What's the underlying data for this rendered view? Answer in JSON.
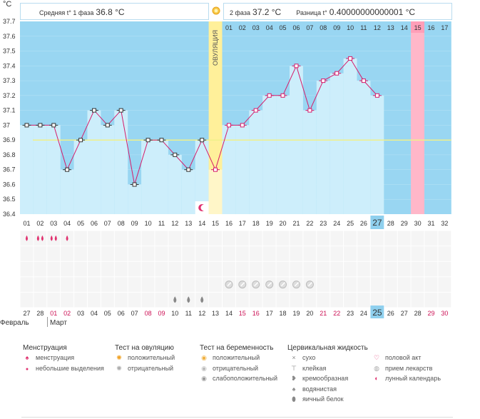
{
  "header": {
    "unit": "°C",
    "phase1_label": "Средняя t° 1 фаза",
    "phase1_value": "36.8 °C",
    "phase2_label": "2 фаза",
    "phase2_value": "37.2 °C",
    "diff_label": "Разница t°",
    "diff_value": "0.40000000000001 °C"
  },
  "ovulation_label": "ОВУЛЯЦИЯ",
  "chart_data": {
    "type": "line",
    "ylim": [
      36.4,
      37.7
    ],
    "y_ticks": [
      "37.7",
      "37.6",
      "37.5",
      "37.4",
      "37.3",
      "37.2",
      "37.1",
      "37",
      "36.9",
      "36.8",
      "36.7",
      "36.6",
      "36.5",
      "36.4"
    ],
    "cycle_days": [
      "01",
      "02",
      "03",
      "04",
      "05",
      "06",
      "07",
      "08",
      "09",
      "10",
      "11",
      "12",
      "13",
      "14",
      "15",
      "16",
      "17",
      "18",
      "19",
      "20",
      "21",
      "22",
      "23",
      "24",
      "25",
      "26",
      "27",
      "28",
      "29",
      "30",
      "31",
      "32"
    ],
    "highlight_day": "27",
    "temperatures": [
      37.0,
      37.0,
      37.0,
      36.7,
      36.9,
      37.1,
      37.0,
      37.1,
      36.6,
      36.9,
      36.9,
      36.8,
      36.7,
      36.9,
      36.7,
      37.0,
      37.0,
      37.1,
      37.2,
      37.2,
      37.4,
      37.1,
      37.3,
      37.35,
      37.45,
      37.3,
      37.2
    ],
    "coverline": 36.9,
    "luteal_days": [
      "01",
      "02",
      "03",
      "04",
      "05",
      "06",
      "07",
      "08",
      "09",
      "10",
      "11",
      "12",
      "13",
      "14",
      "15",
      "16",
      "17"
    ],
    "luteal_highlight": "15",
    "ovulation_day": "15",
    "moon_day": "14",
    "dates": [
      "27",
      "28",
      "01",
      "02",
      "03",
      "04",
      "05",
      "06",
      "07",
      "08",
      "09",
      "10",
      "11",
      "12",
      "13",
      "14",
      "15",
      "16",
      "17",
      "18",
      "19",
      "20",
      "21",
      "22",
      "23",
      "24",
      "25",
      "26",
      "27",
      "28",
      "29",
      "30"
    ],
    "date_colors": [
      "#333",
      "#333",
      "#cc1155",
      "#cc1155",
      "#333",
      "#333",
      "#333",
      "#333",
      "#333",
      "#cc1155",
      "#cc1155",
      "#333",
      "#333",
      "#333",
      "#333",
      "#333",
      "#cc1155",
      "#cc1155",
      "#333",
      "#333",
      "#333",
      "#333",
      "#cc1155",
      "#cc1155",
      "#333",
      "#333",
      "#333",
      "#333",
      "#333",
      "#333",
      "#cc1155",
      "#cc1155"
    ],
    "highlight_date": "25",
    "months": [
      "Февраль",
      "Март"
    ],
    "colors": {
      "high": "#99d6f2",
      "low": "#cdeefb",
      "line": "#d61c6a",
      "ovulation": "#fff09a",
      "day15": "#ffb7c9",
      "coverline": "#f0f08a"
    }
  },
  "legend": {
    "menstruation": {
      "title": "Менструация",
      "items": [
        "менструация",
        "небольшие выделения"
      ]
    },
    "ovulation_test": {
      "title": "Тест на овуляцию",
      "items": [
        "положительный",
        "отрицательный"
      ]
    },
    "pregnancy_test": {
      "title": "Тест на беременность",
      "items": [
        "положительный",
        "отрицательный",
        "слабоположительный"
      ]
    },
    "cervical": {
      "title": "Цервикальная жидкость",
      "items": [
        "сухо",
        "клейкая",
        "кремообразная",
        "водянистая",
        "яичный белок"
      ]
    },
    "other": {
      "items": [
        "половой акт",
        "прием лекарств",
        "лунный календарь"
      ]
    }
  }
}
